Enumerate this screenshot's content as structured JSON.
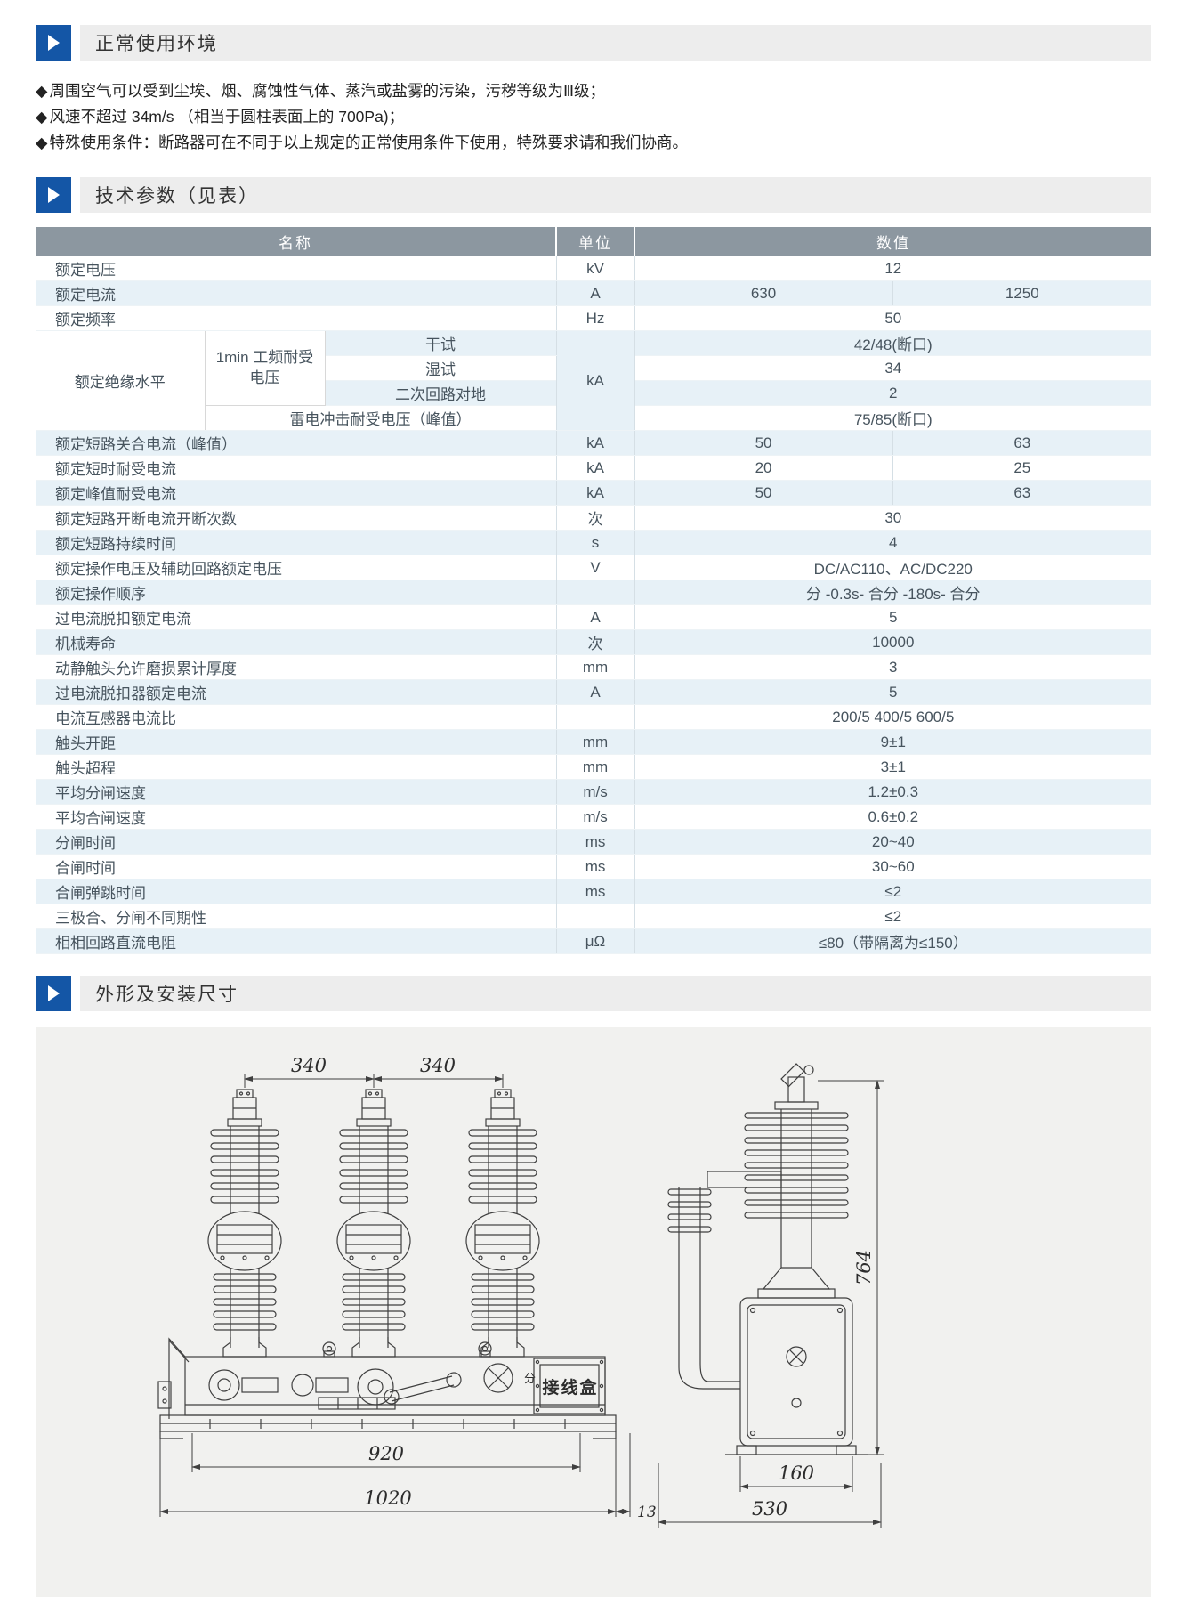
{
  "colors": {
    "accent_blue": "#1456a6",
    "table_header_gray": "#8c97a0",
    "row_stripe_blue": "#e7f1f7"
  },
  "env": {
    "title": "正常使用环境",
    "bullet_glyph": "◆",
    "bullets": [
      "周围空气可以受到尘埃、烟、腐蚀性气体、蒸汽或盐雾的污染，污秽等级为Ⅲ级；",
      "风速不超过 34m/s （相当于圆柱表面上的 700Pa)；",
      "特殊使用条件：断路器可在不同于以上规定的正常使用条件下使用，特殊要求请和我们协商。"
    ]
  },
  "params": {
    "title": "技术参数（见表）",
    "table": {
      "headers": [
        "名称",
        "单位",
        "数值"
      ],
      "rows": [
        {
          "cells": [
            {
              "t": "额定电压",
              "cs": 3,
              "cls": "name"
            },
            {
              "t": "kV",
              "cls": "unit"
            },
            {
              "t": "12",
              "cs": 2,
              "cls": "val"
            }
          ]
        },
        {
          "shade": 1,
          "cells": [
            {
              "t": "额定电流",
              "cs": 3,
              "cls": "name"
            },
            {
              "t": "A",
              "cls": "unit"
            },
            {
              "t": "630",
              "cls": "val v1"
            },
            {
              "t": "1250",
              "cls": "val"
            }
          ]
        },
        {
          "cells": [
            {
              "t": "额定频率",
              "cs": 3,
              "cls": "name"
            },
            {
              "t": "Hz",
              "cls": "unit"
            },
            {
              "t": "50",
              "cs": 2,
              "cls": "val"
            }
          ]
        },
        {
          "shade": 1,
          "cells": [
            {
              "t": "额定绝缘水平",
              "rs": 4,
              "cls": "boxl"
            },
            {
              "t": "1min 工频耐受电压",
              "rs": 3,
              "cls": "boxc"
            },
            {
              "t": "干试",
              "cls": "sub"
            },
            {
              "t": "kA",
              "rs": 4,
              "cls": "unit"
            },
            {
              "t": "42/48(断口)",
              "cs": 2,
              "cls": "val"
            }
          ]
        },
        {
          "cells": [
            {
              "t": "湿试",
              "cls": "sub"
            },
            {
              "t": "34",
              "cs": 2,
              "cls": "val"
            }
          ]
        },
        {
          "shade": 1,
          "cells": [
            {
              "t": "二次回路对地",
              "cls": "sub"
            },
            {
              "t": "2",
              "cs": 2,
              "cls": "val"
            }
          ]
        },
        {
          "cells": [
            {
              "t": "雷电冲击耐受电压（峰值）",
              "cs": 2,
              "cls": "sub"
            },
            {
              "t": "75/85(断口)",
              "cs": 2,
              "cls": "val"
            }
          ]
        },
        {
          "shade": 1,
          "cells": [
            {
              "t": "额定短路关合电流（峰值）",
              "cs": 3,
              "cls": "name"
            },
            {
              "t": "kA",
              "cls": "unit"
            },
            {
              "t": "50",
              "cls": "val v1"
            },
            {
              "t": "63",
              "cls": "val"
            }
          ]
        },
        {
          "cells": [
            {
              "t": "额定短时耐受电流",
              "cs": 3,
              "cls": "name"
            },
            {
              "t": "kA",
              "cls": "unit"
            },
            {
              "t": "20",
              "cls": "val v1"
            },
            {
              "t": "25",
              "cls": "val"
            }
          ]
        },
        {
          "shade": 1,
          "cells": [
            {
              "t": "额定峰值耐受电流",
              "cs": 3,
              "cls": "name"
            },
            {
              "t": "kA",
              "cls": "unit"
            },
            {
              "t": "50",
              "cls": "val v1"
            },
            {
              "t": "63",
              "cls": "val"
            }
          ]
        },
        {
          "cells": [
            {
              "t": "额定短路开断电流开断次数",
              "cs": 3,
              "cls": "name"
            },
            {
              "t": "次",
              "cls": "unit"
            },
            {
              "t": "30",
              "cs": 2,
              "cls": "val"
            }
          ]
        },
        {
          "shade": 1,
          "cells": [
            {
              "t": "额定短路持续时间",
              "cs": 3,
              "cls": "name"
            },
            {
              "t": "s",
              "cls": "unit"
            },
            {
              "t": "4",
              "cs": 2,
              "cls": "val"
            }
          ]
        },
        {
          "cells": [
            {
              "t": "额定操作电压及辅助回路额定电压",
              "cs": 3,
              "cls": "name"
            },
            {
              "t": "V",
              "cls": "unit"
            },
            {
              "t": "DC/AC110、AC/DC220",
              "cs": 2,
              "cls": "val"
            }
          ]
        },
        {
          "shade": 1,
          "cells": [
            {
              "t": "额定操作顺序",
              "cs": 3,
              "cls": "name"
            },
            {
              "t": "",
              "cls": "unit"
            },
            {
              "t": "分 -0.3s- 合分 -180s- 合分",
              "cs": 2,
              "cls": "val"
            }
          ]
        },
        {
          "cells": [
            {
              "t": "过电流脱扣额定电流",
              "cs": 3,
              "cls": "name"
            },
            {
              "t": "A",
              "cls": "unit"
            },
            {
              "t": "5",
              "cs": 2,
              "cls": "val"
            }
          ]
        },
        {
          "shade": 1,
          "cells": [
            {
              "t": "机械寿命",
              "cs": 3,
              "cls": "name"
            },
            {
              "t": "次",
              "cls": "unit"
            },
            {
              "t": "10000",
              "cs": 2,
              "cls": "val"
            }
          ]
        },
        {
          "cells": [
            {
              "t": "动静触头允许磨损累计厚度",
              "cs": 3,
              "cls": "name"
            },
            {
              "t": "mm",
              "cls": "unit"
            },
            {
              "t": "3",
              "cs": 2,
              "cls": "val"
            }
          ]
        },
        {
          "shade": 1,
          "cells": [
            {
              "t": "过电流脱扣器额定电流",
              "cs": 3,
              "cls": "name"
            },
            {
              "t": "A",
              "cls": "unit"
            },
            {
              "t": "5",
              "cs": 2,
              "cls": "val"
            }
          ]
        },
        {
          "cells": [
            {
              "t": "电流互感器电流比",
              "cs": 3,
              "cls": "name"
            },
            {
              "t": "",
              "cls": "unit"
            },
            {
              "t": "200/5 400/5 600/5",
              "cs": 2,
              "cls": "val"
            }
          ]
        },
        {
          "shade": 1,
          "cells": [
            {
              "t": "触头开距",
              "cs": 3,
              "cls": "name"
            },
            {
              "t": "mm",
              "cls": "unit"
            },
            {
              "t": "9±1",
              "cs": 2,
              "cls": "val"
            }
          ]
        },
        {
          "cells": [
            {
              "t": "触头超程",
              "cs": 3,
              "cls": "name"
            },
            {
              "t": "mm",
              "cls": "unit"
            },
            {
              "t": "3±1",
              "cs": 2,
              "cls": "val"
            }
          ]
        },
        {
          "shade": 1,
          "cells": [
            {
              "t": "平均分闸速度",
              "cs": 3,
              "cls": "name"
            },
            {
              "t": "m/s",
              "cls": "unit"
            },
            {
              "t": "1.2±0.3",
              "cs": 2,
              "cls": "val"
            }
          ]
        },
        {
          "cells": [
            {
              "t": "平均合闸速度",
              "cs": 3,
              "cls": "name"
            },
            {
              "t": "m/s",
              "cls": "unit"
            },
            {
              "t": "0.6±0.2",
              "cs": 2,
              "cls": "val"
            }
          ]
        },
        {
          "shade": 1,
          "cells": [
            {
              "t": "分闸时间",
              "cs": 3,
              "cls": "name"
            },
            {
              "t": "ms",
              "cls": "unit"
            },
            {
              "t": "20~40",
              "cs": 2,
              "cls": "val"
            }
          ]
        },
        {
          "cells": [
            {
              "t": "合闸时间",
              "cs": 3,
              "cls": "name"
            },
            {
              "t": "ms",
              "cls": "unit"
            },
            {
              "t": "30~60",
              "cs": 2,
              "cls": "val"
            }
          ]
        },
        {
          "shade": 1,
          "cells": [
            {
              "t": "合闸弹跳时间",
              "cs": 3,
              "cls": "name"
            },
            {
              "t": "ms",
              "cls": "unit"
            },
            {
              "t": "≤2",
              "cs": 2,
              "cls": "val"
            }
          ]
        },
        {
          "cells": [
            {
              "t": "三极合、分闸不同期性",
              "cs": 3,
              "cls": "name"
            },
            {
              "t": "",
              "cls": "unit"
            },
            {
              "t": "≤2",
              "cs": 2,
              "cls": "val"
            }
          ]
        },
        {
          "shade": 1,
          "cells": [
            {
              "t": "相相回路直流电阻",
              "cs": 3,
              "cls": "name"
            },
            {
              "t": "μΩ",
              "cls": "unit"
            },
            {
              "t": "≤80（带隔离为≤150）",
              "cs": 2,
              "cls": "val"
            }
          ]
        }
      ]
    }
  },
  "outline": {
    "title": "外形及安装尺寸",
    "front_view": {
      "dim_top_left": "340",
      "dim_top_right": "340",
      "dim_920": "920",
      "dim_1020": "1020",
      "dim_13": "13",
      "junction_box": "接线盒",
      "indicator": "分"
    },
    "side_view": {
      "dim_764": "764",
      "dim_160": "160",
      "dim_530": "530"
    }
  }
}
